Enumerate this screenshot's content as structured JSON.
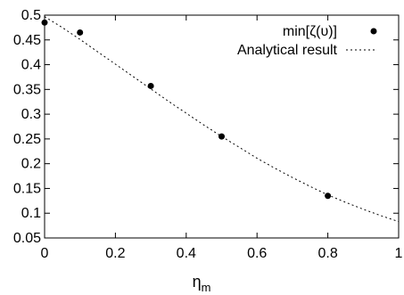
{
  "chart_data": {
    "type": "scatter",
    "title": "",
    "xlabel": "η",
    "xlabel_subscript": "m",
    "ylabel": "",
    "xlim": [
      0,
      1
    ],
    "ylim": [
      0.05,
      0.5
    ],
    "x_ticks": [
      0,
      0.2,
      0.4,
      0.6,
      0.8,
      1
    ],
    "x_tick_labels": [
      "0",
      "0.2",
      "0.4",
      "0.6",
      "0.8",
      "1"
    ],
    "y_ticks": [
      0.05,
      0.1,
      0.15,
      0.2,
      0.25,
      0.3,
      0.35,
      0.4,
      0.45,
      0.5
    ],
    "y_tick_labels": [
      "0.05",
      "0.1",
      "0.15",
      "0.2",
      "0.25",
      "0.3",
      "0.35",
      "0.4",
      "0.45",
      "0.5"
    ],
    "grid": false,
    "legend_position": "top-right",
    "series": [
      {
        "name": "min[ζ(υ)]",
        "style": "points",
        "color": "#000000",
        "x": [
          0.0,
          0.1,
          0.3,
          0.5,
          0.8
        ],
        "y": [
          0.485,
          0.465,
          0.357,
          0.255,
          0.135
        ]
      },
      {
        "name": "Analytical result",
        "style": "dotted-line",
        "color": "#000000",
        "x": [
          0.0,
          0.05,
          0.1,
          0.15,
          0.2,
          0.25,
          0.3,
          0.35,
          0.4,
          0.45,
          0.5,
          0.55,
          0.6,
          0.65,
          0.7,
          0.75,
          0.8,
          0.85,
          0.9,
          0.95,
          1.0
        ],
        "y": [
          0.497,
          0.475,
          0.451,
          0.426,
          0.401,
          0.376,
          0.351,
          0.326,
          0.302,
          0.278,
          0.255,
          0.233,
          0.211,
          0.191,
          0.172,
          0.154,
          0.137,
          0.122,
          0.108,
          0.095,
          0.083
        ]
      }
    ]
  }
}
